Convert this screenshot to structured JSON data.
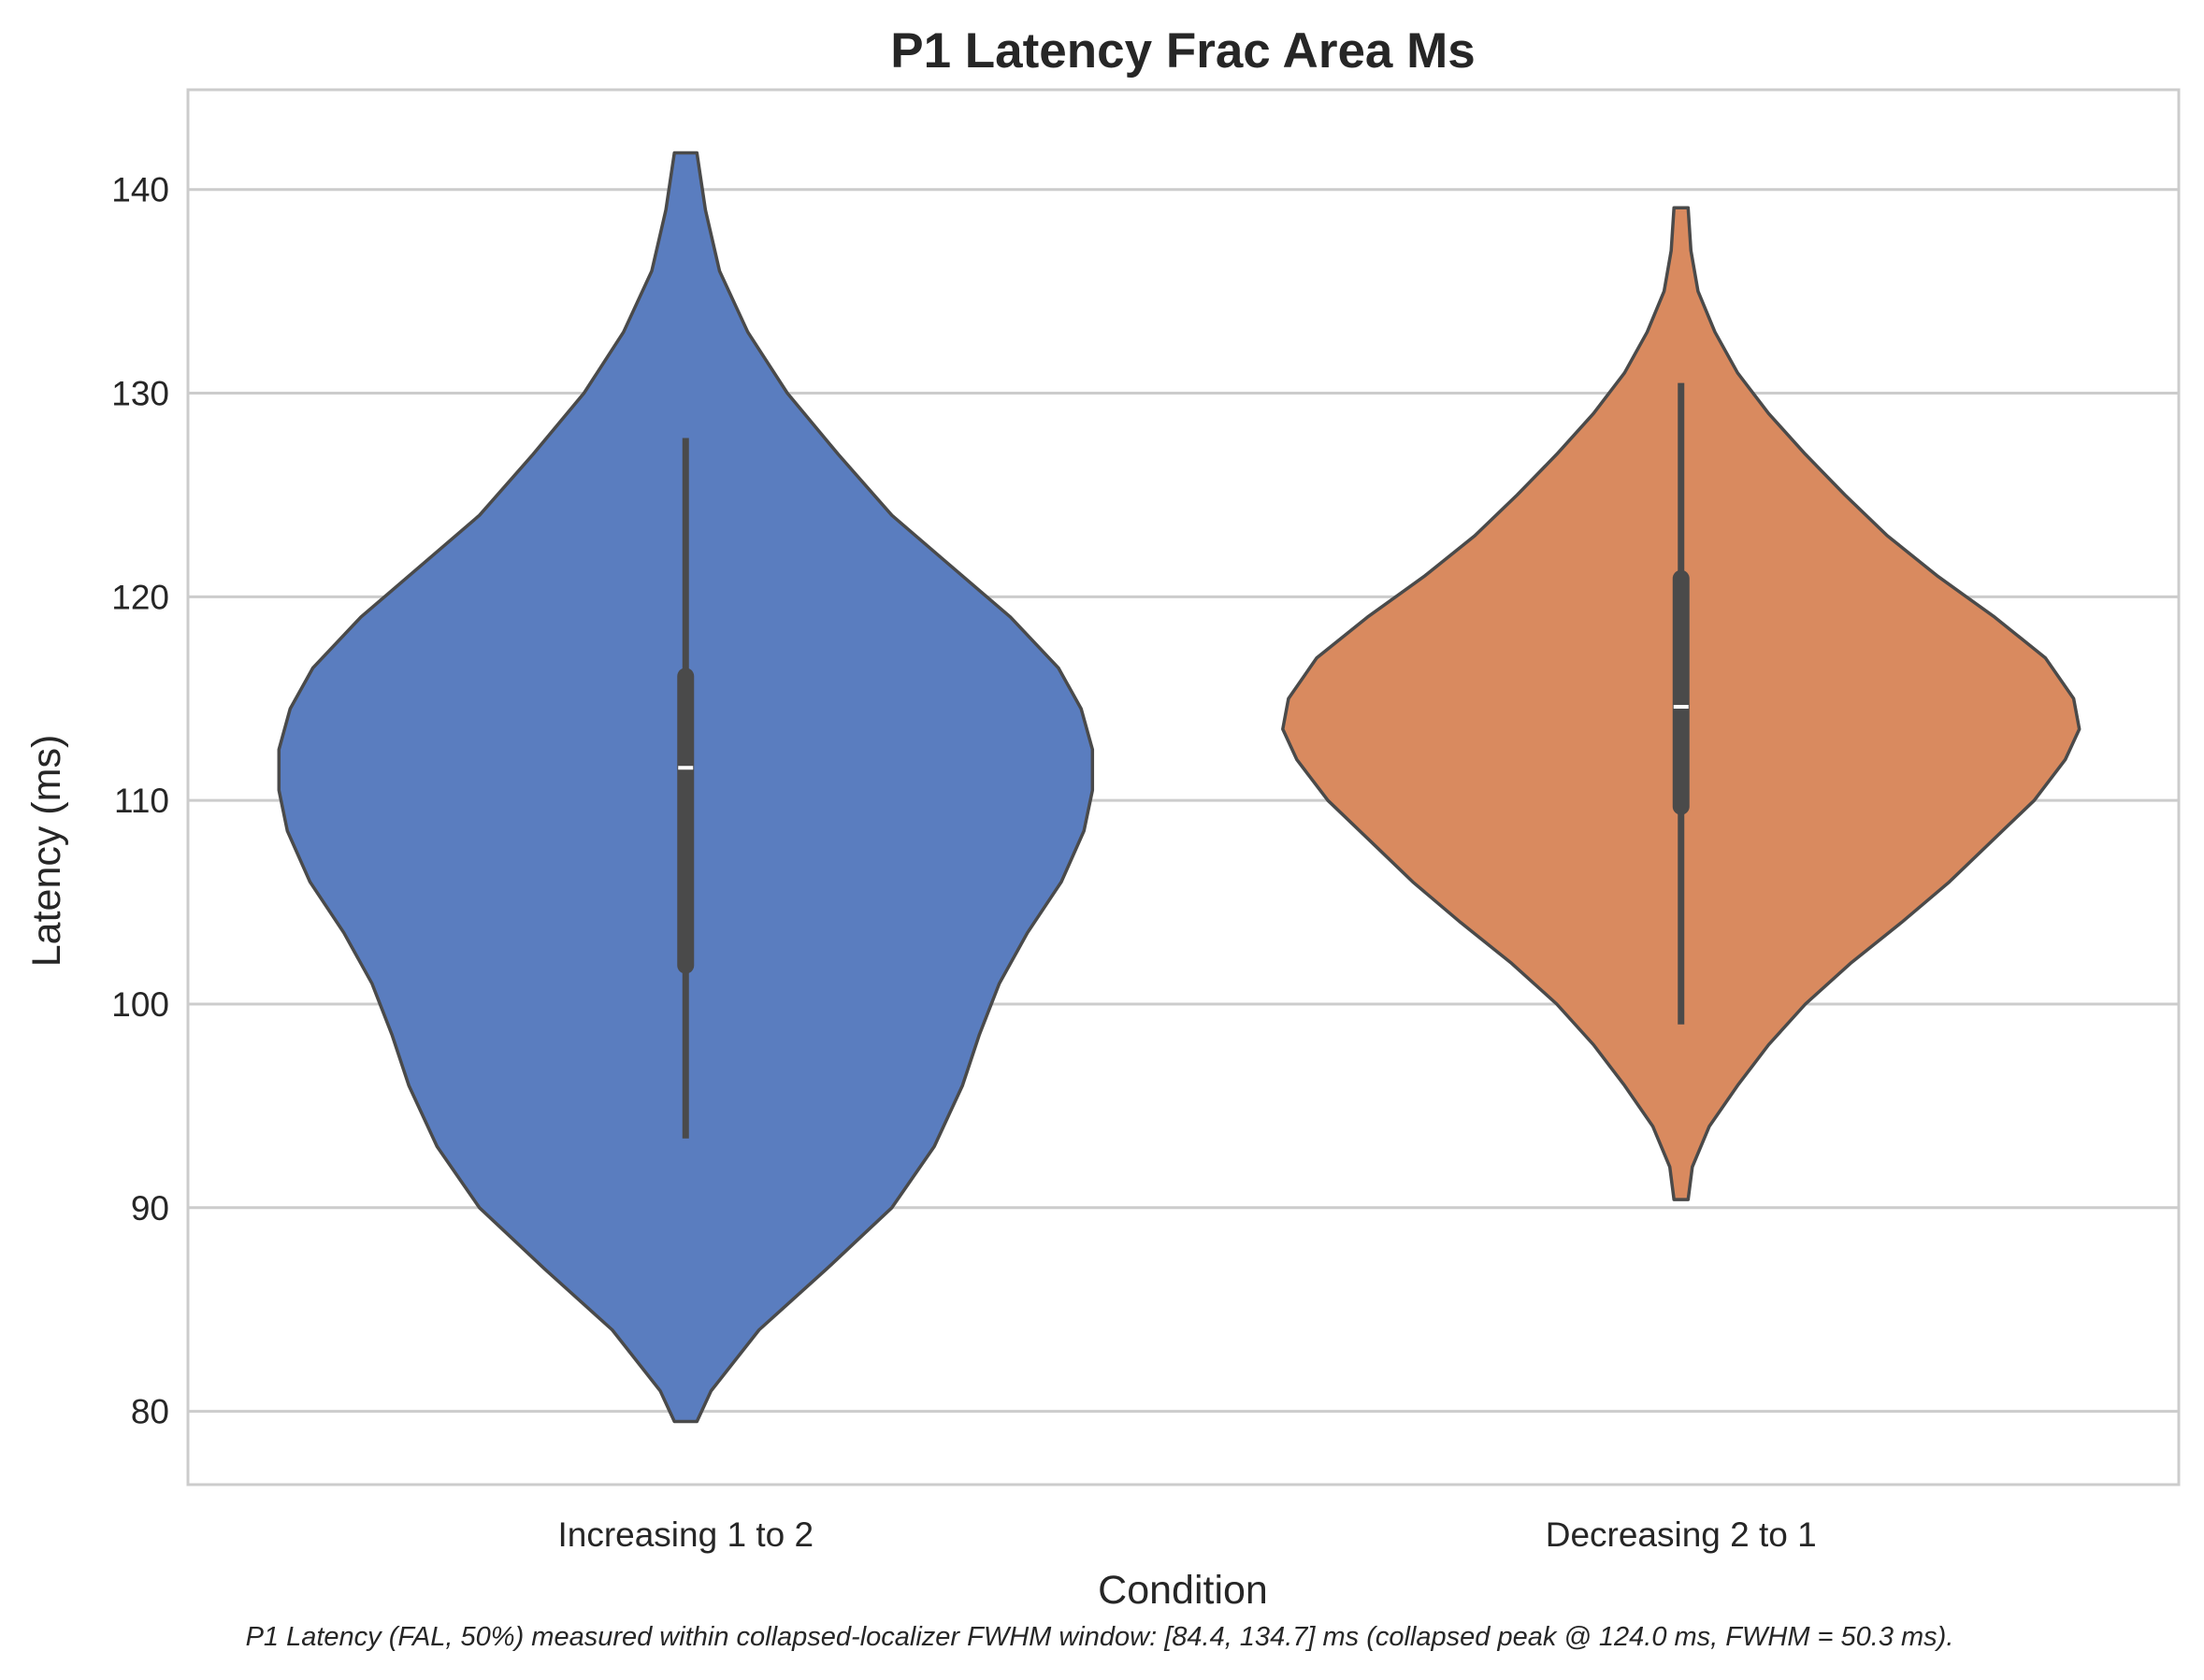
{
  "chart_data": {
    "type": "violin",
    "title": "P1 Latency Frac Area Ms",
    "xlabel": "Condition",
    "ylabel": "Latency (ms)",
    "ylim": [
      76.4,
      144.9
    ],
    "yticks": [
      80,
      90,
      100,
      110,
      120,
      130,
      140
    ],
    "grid": "horizontal",
    "categories": [
      "Increasing 1 to 2",
      "Decreasing 2 to 1"
    ],
    "series": [
      {
        "color": "#5a7dbf",
        "kde_extent": [
          79.5,
          141.8
        ],
        "whisker": [
          93.4,
          127.8
        ],
        "iqr": [
          101.9,
          116.1
        ],
        "median": 111.6,
        "density": [
          [
            79.5,
            0.04
          ],
          [
            81,
            0.09
          ],
          [
            84,
            0.26
          ],
          [
            87,
            0.5
          ],
          [
            90,
            0.73
          ],
          [
            93,
            0.88
          ],
          [
            96,
            0.98
          ],
          [
            98.5,
            1.04
          ],
          [
            101,
            1.11
          ],
          [
            103.5,
            1.21
          ],
          [
            106,
            1.33
          ],
          [
            108.5,
            1.41
          ],
          [
            110.5,
            1.44
          ],
          [
            112.5,
            1.44
          ],
          [
            114.5,
            1.4
          ],
          [
            116.5,
            1.32
          ],
          [
            119,
            1.15
          ],
          [
            121.5,
            0.94
          ],
          [
            124,
            0.73
          ],
          [
            127,
            0.54
          ],
          [
            130,
            0.36
          ],
          [
            133,
            0.22
          ],
          [
            136,
            0.12
          ],
          [
            139,
            0.07
          ],
          [
            141.8,
            0.04
          ]
        ]
      },
      {
        "color": "#d98a5f",
        "kde_extent": [
          90.4,
          139.1
        ],
        "whisker": [
          99.0,
          130.5
        ],
        "iqr": [
          109.7,
          120.9
        ],
        "median": 114.6,
        "density": [
          [
            90.4,
            0.025
          ],
          [
            92,
            0.04
          ],
          [
            94,
            0.1
          ],
          [
            96,
            0.2
          ],
          [
            98,
            0.31
          ],
          [
            100,
            0.44
          ],
          [
            102,
            0.6
          ],
          [
            104,
            0.78
          ],
          [
            106,
            0.95
          ],
          [
            108,
            1.1
          ],
          [
            110,
            1.25
          ],
          [
            112,
            1.36
          ],
          [
            113.5,
            1.41
          ],
          [
            115,
            1.39
          ],
          [
            117,
            1.29
          ],
          [
            119,
            1.11
          ],
          [
            121,
            0.91
          ],
          [
            123,
            0.73
          ],
          [
            125,
            0.58
          ],
          [
            127,
            0.44
          ],
          [
            129,
            0.31
          ],
          [
            131,
            0.2
          ],
          [
            133,
            0.12
          ],
          [
            135,
            0.06
          ],
          [
            137,
            0.035
          ],
          [
            139.1,
            0.025
          ]
        ]
      }
    ]
  },
  "caption": "P1 Latency (FAL, 50%) measured within collapsed-localizer FWHM window: [84.4, 134.7] ms (collapsed peak @ 124.0 ms, FWHM = 50.3 ms)."
}
